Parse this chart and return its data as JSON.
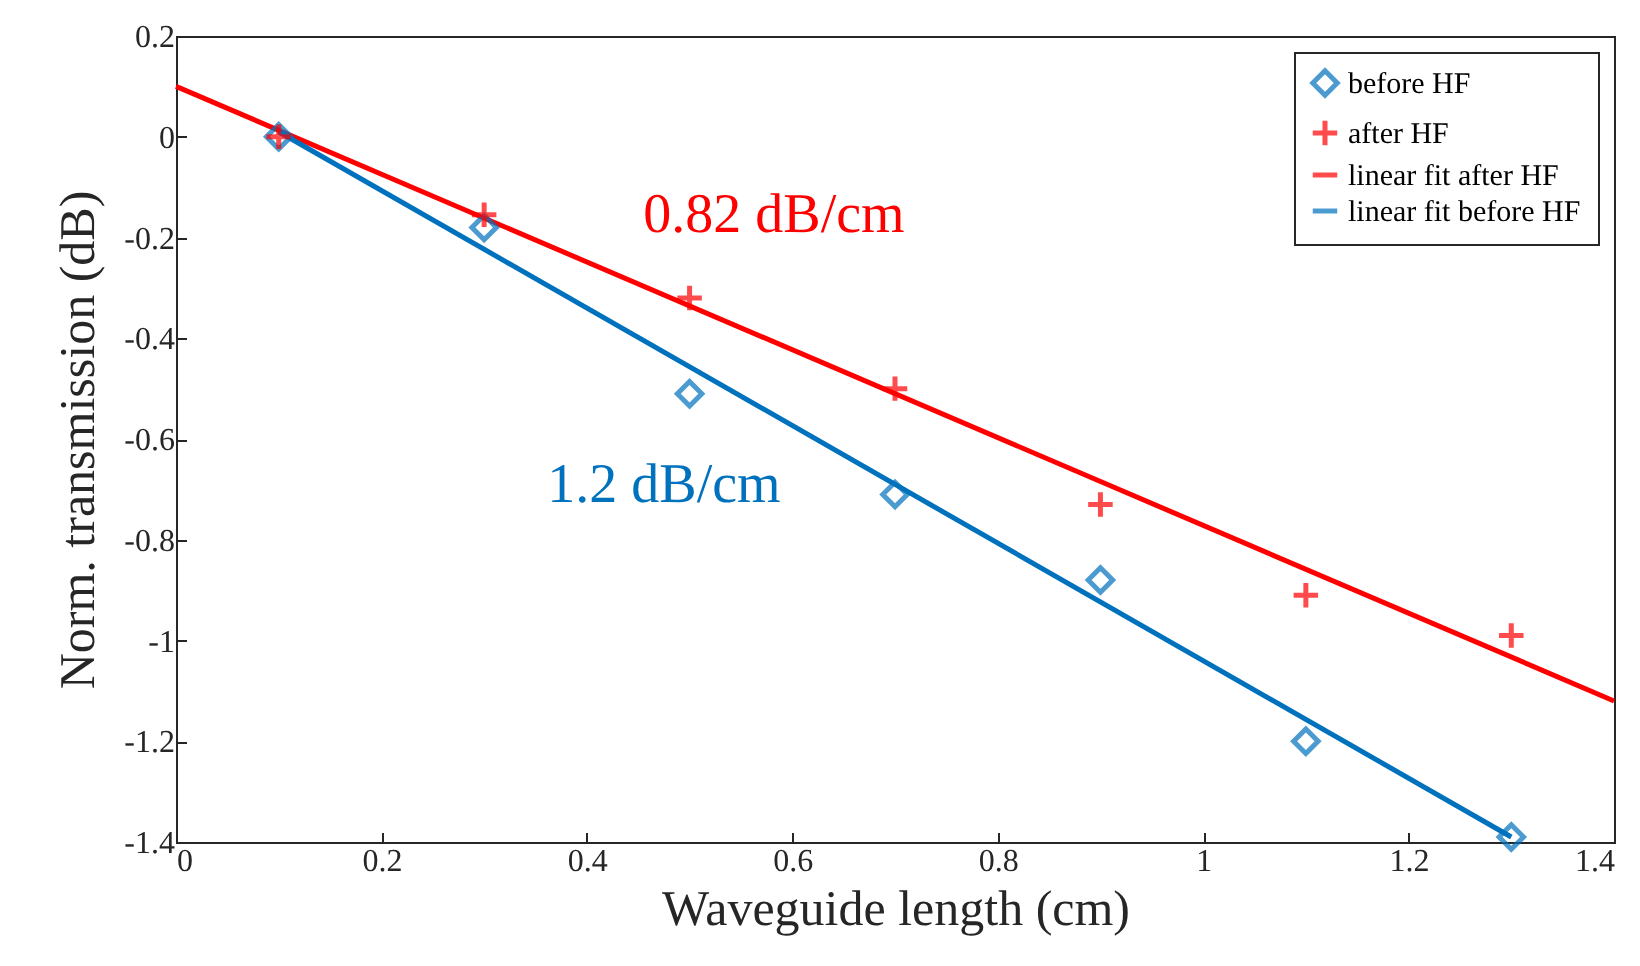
{
  "chart_data": {
    "type": "scatter",
    "xlabel": "Waveguide length (cm)",
    "ylabel": "Norm. transmission (dB)",
    "xlim": [
      0,
      1.4
    ],
    "xticks": [
      {
        "value": 0,
        "label": "0"
      },
      0.2,
      0.4,
      0.6,
      0.8,
      {
        "value": 1,
        "label": "1"
      },
      1.2,
      1.4
    ],
    "ylim": [
      -1.4,
      0.2
    ],
    "yticks": [
      -1.4,
      -1.2,
      {
        "value": -1,
        "label": "-1"
      },
      -0.8,
      -0.6,
      -0.4,
      -0.2,
      {
        "value": 0,
        "label": "0"
      },
      0.2
    ],
    "grid": false,
    "legend": "top right",
    "series": [
      {
        "name": "before HF",
        "marker": "diamond",
        "color": "#0072bd",
        "x": [
          0.1,
          0.3,
          0.5,
          0.7,
          0.9,
          1.1,
          1.3
        ],
        "values": [
          0,
          -0.18,
          -0.51,
          -0.71,
          -0.88,
          -1.2,
          -1.39
        ]
      },
      {
        "name": "after HF",
        "marker": "cross",
        "color": "#ff0000",
        "x": [
          0.1,
          0.3,
          0.5,
          0.7,
          0.9,
          1.1,
          1.3
        ],
        "values": [
          0,
          -0.155,
          -0.32,
          -0.5,
          -0.73,
          -0.91,
          -0.99
        ]
      },
      {
        "name": "linear fit after HF",
        "type": "line",
        "marker": "none",
        "color": "#ff0000",
        "x": [
          0,
          1.4
        ],
        "values": [
          0.1,
          -1.12
        ]
      },
      {
        "name": "linear fit before HF",
        "type": "line",
        "marker": "none",
        "color": "#0072bd",
        "x": [
          0.1,
          1.3
        ],
        "values": [
          0.01,
          -1.39
        ]
      }
    ],
    "annotations": [
      "0.82 dB/cm",
      "1.2 dB/cm"
    ]
  }
}
